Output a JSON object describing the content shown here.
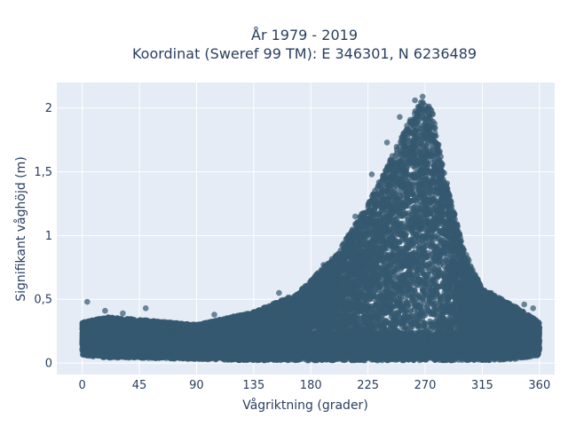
{
  "chart_data": {
    "type": "scatter",
    "title_lines": [
      "År 1979 - 2019",
      "Koordinat (Sweref 99 TM): E 346301, N 6236489"
    ],
    "xlabel": "Vågriktning (grader)",
    "ylabel": "Signifikant våghöjd (m)",
    "xlim": [
      -20,
      372
    ],
    "ylim": [
      -0.09,
      2.2
    ],
    "xticks": [
      {
        "value": 0,
        "label": "0"
      },
      {
        "value": 45,
        "label": "45"
      },
      {
        "value": 90,
        "label": "90"
      },
      {
        "value": 135,
        "label": "135"
      },
      {
        "value": 180,
        "label": "180"
      },
      {
        "value": 225,
        "label": "225"
      },
      {
        "value": 270,
        "label": "270"
      },
      {
        "value": 315,
        "label": "315"
      },
      {
        "value": 360,
        "label": "360"
      }
    ],
    "yticks": [
      {
        "value": 0,
        "label": "0"
      },
      {
        "value": 0.5,
        "label": "0,5"
      },
      {
        "value": 1,
        "label": "1"
      },
      {
        "value": 1.5,
        "label": "1,5"
      },
      {
        "value": 2,
        "label": "2"
      }
    ],
    "grid": true,
    "marker_color": "#34596f",
    "plot_background": "#e5ecf6",
    "envelope": {
      "direction": [
        0,
        20,
        45,
        90,
        135,
        170,
        200,
        225,
        245,
        260,
        268,
        275,
        285,
        300,
        315,
        340,
        360
      ],
      "height_max": [
        0.32,
        0.36,
        0.34,
        0.3,
        0.4,
        0.55,
        0.85,
        1.25,
        1.65,
        1.95,
        2.07,
        2.0,
        1.5,
        0.9,
        0.58,
        0.45,
        0.32
      ],
      "height_min": [
        0.06,
        0.04,
        0.04,
        0.03,
        0.02,
        0.02,
        0.02,
        0.02,
        0.02,
        0.02,
        0.02,
        0.02,
        0.02,
        0.02,
        0.02,
        0.03,
        0.06
      ]
    },
    "outliers": [
      {
        "x": 4,
        "y": 0.48
      },
      {
        "x": 18,
        "y": 0.41
      },
      {
        "x": 32,
        "y": 0.39
      },
      {
        "x": 50,
        "y": 0.43
      },
      {
        "x": 104,
        "y": 0.38
      },
      {
        "x": 155,
        "y": 0.55
      },
      {
        "x": 190,
        "y": 0.77
      },
      {
        "x": 215,
        "y": 1.15
      },
      {
        "x": 228,
        "y": 1.48
      },
      {
        "x": 240,
        "y": 1.73
      },
      {
        "x": 250,
        "y": 1.93
      },
      {
        "x": 262,
        "y": 2.06
      },
      {
        "x": 268,
        "y": 2.09
      },
      {
        "x": 276,
        "y": 1.95
      },
      {
        "x": 298,
        "y": 0.95
      },
      {
        "x": 322,
        "y": 0.55
      },
      {
        "x": 348,
        "y": 0.46
      },
      {
        "x": 355,
        "y": 0.43
      }
    ]
  }
}
